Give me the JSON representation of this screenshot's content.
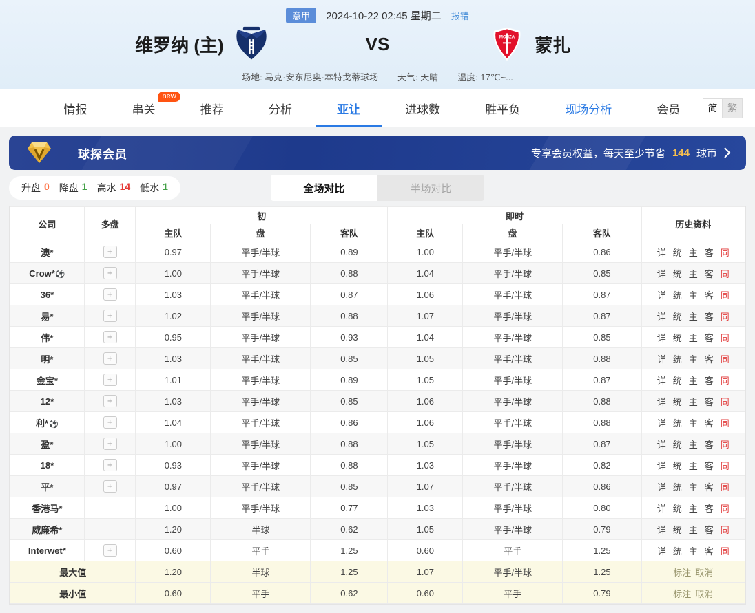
{
  "match_header": {
    "league": "意甲",
    "datetime": "2024-10-22 02:45 星期二",
    "report_error": "报错",
    "home_team": "维罗纳 (主)",
    "vs": "VS",
    "away_team": "蒙扎",
    "info": {
      "venue": "场地: 马克·安东尼奥·本特戈蒂球场",
      "weather": "天气: 天晴",
      "temperature": "温度: 17℃~..."
    }
  },
  "nav": {
    "tabs": [
      {
        "id": "intel",
        "label": "情报"
      },
      {
        "id": "parlay",
        "label": "串关",
        "badge": "new"
      },
      {
        "id": "recommend",
        "label": "推荐"
      },
      {
        "id": "analysis",
        "label": "分析"
      },
      {
        "id": "asian-handicap",
        "label": "亚让",
        "active": true
      },
      {
        "id": "goals",
        "label": "进球数"
      },
      {
        "id": "win-draw-loss",
        "label": "胜平负"
      },
      {
        "id": "live-analysis",
        "label": "现场分析",
        "highlight": true
      },
      {
        "id": "member",
        "label": "会员"
      }
    ],
    "lang_simple": "简",
    "lang_traditional": "繁"
  },
  "vip_banner": {
    "title": "球探会员",
    "promo_prefix": "专享会员权益，每天至少节省",
    "promo_value": "144",
    "promo_suffix": "球币"
  },
  "stats_bar": {
    "items": [
      {
        "id": "raise",
        "label": "升盘",
        "value": "0",
        "color": "#ff7043"
      },
      {
        "id": "drop",
        "label": "降盘",
        "value": "1",
        "color": "#43a047"
      },
      {
        "id": "high-water",
        "label": "高水",
        "value": "14",
        "color": "#e53935"
      },
      {
        "id": "low-water",
        "label": "低水",
        "value": "1",
        "color": "#43a047"
      }
    ],
    "tab_full": "全场对比",
    "tab_half": "半场对比"
  },
  "icons": {
    "soccer_ball": "⚽",
    "plus": "+"
  },
  "odds_table": {
    "headers": {
      "company": "公司",
      "multi": "多盘",
      "initial": "初",
      "live": "即时",
      "home": "主队",
      "line": "盘",
      "away": "客队",
      "history": "历史资料"
    },
    "history_links": [
      {
        "id": "detail",
        "label": "详"
      },
      {
        "id": "stats",
        "label": "统"
      },
      {
        "id": "home",
        "label": "主"
      },
      {
        "id": "away",
        "label": "客"
      },
      {
        "id": "same",
        "label": "同",
        "red": true
      }
    ],
    "summary_links": [
      {
        "id": "mark",
        "label": "标注"
      },
      {
        "id": "cancel",
        "label": "取消"
      }
    ],
    "rows": [
      {
        "company": "澳*",
        "ball": false,
        "plus": true,
        "init": [
          "0.97",
          "平手/半球",
          "0.89"
        ],
        "live": [
          "1.00",
          "平手/半球",
          "0.86"
        ]
      },
      {
        "company": "Crow*",
        "ball": true,
        "plus": true,
        "init": [
          "1.00",
          "平手/半球",
          "0.88"
        ],
        "live": [
          "1.04",
          "平手/半球",
          "0.85"
        ]
      },
      {
        "company": "36*",
        "ball": false,
        "plus": true,
        "init": [
          "1.03",
          "平手/半球",
          "0.87"
        ],
        "live": [
          "1.06",
          "平手/半球",
          "0.87"
        ]
      },
      {
        "company": "易*",
        "ball": false,
        "plus": true,
        "init": [
          "1.02",
          "平手/半球",
          "0.88"
        ],
        "live": [
          "1.07",
          "平手/半球",
          "0.87"
        ]
      },
      {
        "company": "伟*",
        "ball": false,
        "plus": true,
        "init": [
          "0.95",
          "平手/半球",
          "0.93"
        ],
        "live": [
          "1.04",
          "平手/半球",
          "0.85"
        ]
      },
      {
        "company": "明*",
        "ball": false,
        "plus": true,
        "init": [
          "1.03",
          "平手/半球",
          "0.85"
        ],
        "live": [
          "1.05",
          "平手/半球",
          "0.88"
        ]
      },
      {
        "company": "金宝*",
        "ball": false,
        "plus": true,
        "init": [
          "1.01",
          "平手/半球",
          "0.89"
        ],
        "live": [
          "1.05",
          "平手/半球",
          "0.87"
        ]
      },
      {
        "company": "12*",
        "ball": false,
        "plus": true,
        "init": [
          "1.03",
          "平手/半球",
          "0.85"
        ],
        "live": [
          "1.06",
          "平手/半球",
          "0.88"
        ]
      },
      {
        "company": "利*",
        "ball": true,
        "plus": true,
        "init": [
          "1.04",
          "平手/半球",
          "0.86"
        ],
        "live": [
          "1.06",
          "平手/半球",
          "0.88"
        ]
      },
      {
        "company": "盈*",
        "ball": false,
        "plus": true,
        "init": [
          "1.00",
          "平手/半球",
          "0.88"
        ],
        "live": [
          "1.05",
          "平手/半球",
          "0.87"
        ]
      },
      {
        "company": "18*",
        "ball": false,
        "plus": true,
        "init": [
          "0.93",
          "平手/半球",
          "0.88"
        ],
        "live": [
          "1.03",
          "平手/半球",
          "0.82"
        ]
      },
      {
        "company": "平*",
        "ball": false,
        "plus": true,
        "init": [
          "0.97",
          "平手/半球",
          "0.85"
        ],
        "live": [
          "1.07",
          "平手/半球",
          "0.86"
        ]
      },
      {
        "company": "香港马*",
        "ball": false,
        "plus": false,
        "init": [
          "1.00",
          "平手/半球",
          "0.77"
        ],
        "live": [
          "1.03",
          "平手/半球",
          "0.80"
        ]
      },
      {
        "company": "威廉希*",
        "ball": false,
        "plus": false,
        "init": [
          "1.20",
          "半球",
          "0.62"
        ],
        "live": [
          "1.05",
          "平手/半球",
          "0.79"
        ]
      },
      {
        "company": "Interwet*",
        "ball": false,
        "plus": true,
        "init": [
          "0.60",
          "平手",
          "1.25"
        ],
        "live": [
          "0.60",
          "平手",
          "1.25"
        ]
      }
    ],
    "summary_rows": [
      {
        "label": "最大值",
        "init": [
          "1.20",
          "半球",
          "1.25"
        ],
        "live": [
          "1.07",
          "平手/半球",
          "1.25"
        ]
      },
      {
        "label": "最小值",
        "init": [
          "0.60",
          "平手",
          "0.62"
        ],
        "live": [
          "0.60",
          "平手",
          "0.79"
        ]
      }
    ]
  },
  "colors": {
    "accent_blue": "#2a7ae4",
    "banner_blue": "#1e3a8c",
    "gold": "#f6bf4f",
    "red": "#e23c3c",
    "green": "#43a047"
  }
}
